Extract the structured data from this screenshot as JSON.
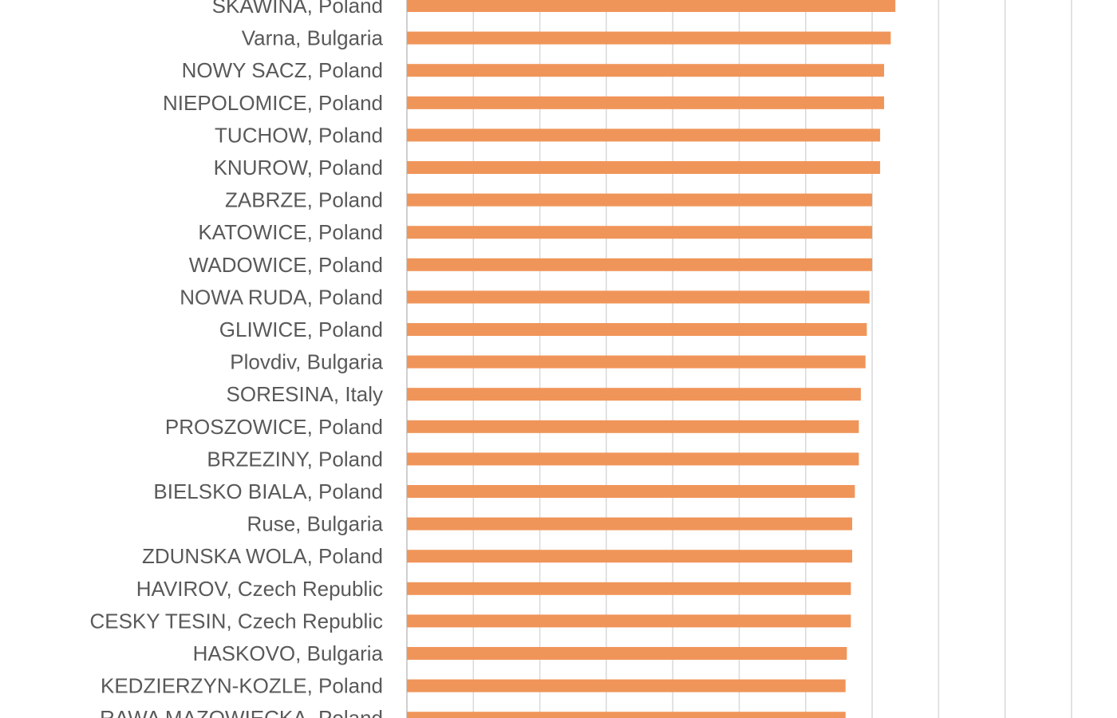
{
  "chart_data": {
    "type": "bar",
    "orientation": "horizontal",
    "categories": [
      "SKAWINA, Poland",
      "Varna, Bulgaria",
      "NOWY SACZ, Poland",
      "NIEPOLOMICE, Poland",
      "TUCHOW, Poland",
      "KNUROW, Poland",
      "ZABRZE, Poland",
      "KATOWICE, Poland",
      "WADOWICE, Poland",
      "NOWA RUDA, Poland",
      "GLIWICE, Poland",
      "Plovdiv, Bulgaria",
      "SORESINA, Italy",
      "PROSZOWICE, Poland",
      "BRZEZINY, Poland",
      "BIELSKO BIALA, Poland",
      "Ruse, Bulgaria",
      "ZDUNSKA WOLA, Poland",
      "HAVIROV, Czech Republic",
      "CESKY TESIN, Czech Republic",
      "HASKOVO, Bulgaria",
      "KEDZIERZYN-KOZLE, Poland",
      "RAWA MAZOWIECKA, Poland"
    ],
    "values": [
      73.5,
      72.8,
      71.8,
      71.8,
      71.2,
      71.2,
      70.0,
      70.0,
      70.0,
      69.6,
      69.2,
      69.0,
      68.3,
      68.0,
      68.0,
      67.4,
      67.0,
      67.0,
      66.8,
      66.8,
      66.2,
      66.0,
      66.0
    ],
    "title": "",
    "xlabel": "",
    "ylabel": "",
    "xlim": [
      0,
      100
    ],
    "gridline_step": 10,
    "grid": true,
    "bar_color": "#f0955a"
  }
}
